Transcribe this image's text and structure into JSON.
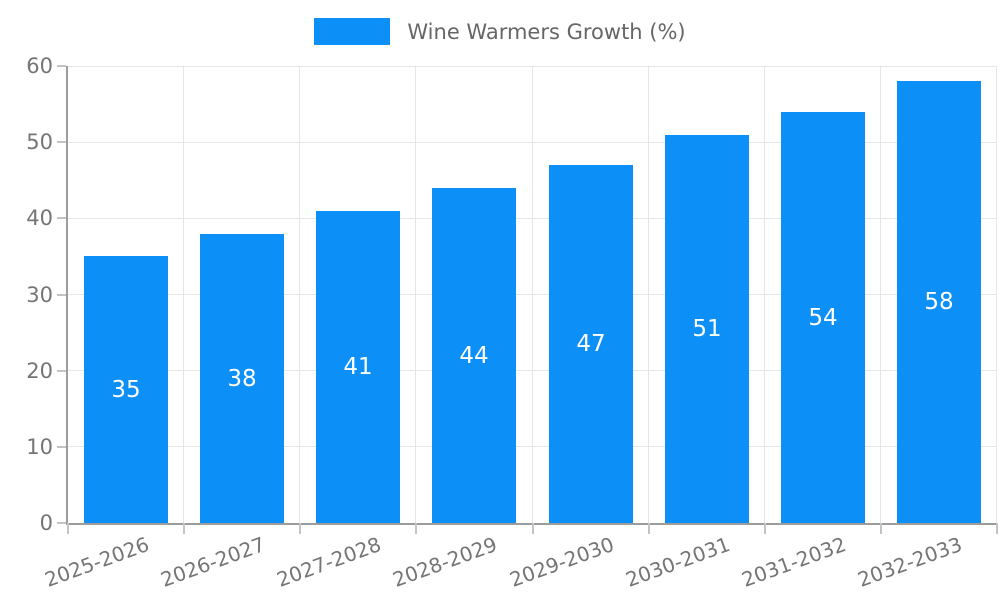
{
  "legend": {
    "label": "Wine Warmers Growth (%)"
  },
  "colors": {
    "bar": "#0d8ff8",
    "axis": "#9c9c9c",
    "grid": "#e6e6e6",
    "tick": "#c4c4c4",
    "axis_label": "#757575",
    "legend_text": "#666666",
    "value_label": "#ffffff",
    "background": "#ffffff"
  },
  "chart_data": {
    "type": "bar",
    "title": "",
    "categories": [
      "2025-2026",
      "2026-2027",
      "2027-2028",
      "2028-2029",
      "2029-2030",
      "2030-2031",
      "2031-2032",
      "2032-2033"
    ],
    "series": [
      {
        "name": "Wine Warmers Growth (%)",
        "values": [
          35,
          38,
          41,
          44,
          47,
          51,
          54,
          58
        ]
      }
    ],
    "xlabel": "",
    "ylabel": "",
    "ylim": [
      0,
      60
    ],
    "yticks": [
      0,
      10,
      20,
      30,
      40,
      50,
      60
    ],
    "grid": true,
    "legend_position": "top-center",
    "x_label_rotation_deg": -20,
    "value_label_position": "center-of-bar"
  }
}
